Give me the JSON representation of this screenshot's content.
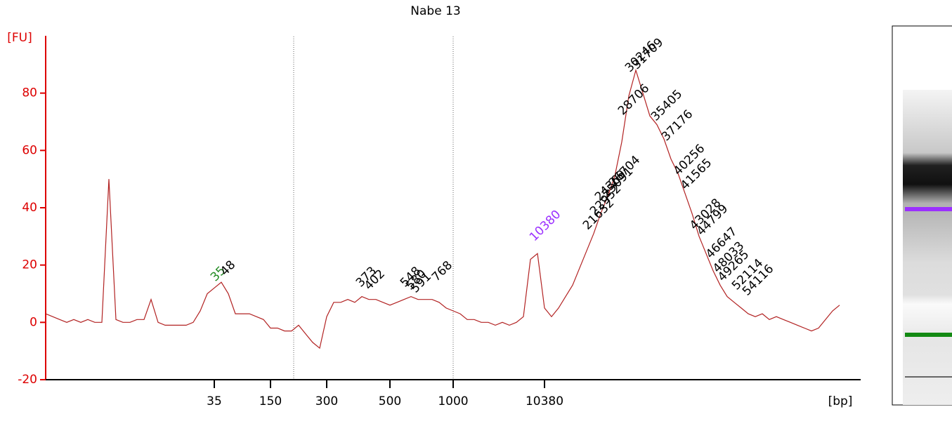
{
  "chart_data": {
    "type": "line",
    "title": "Nabe 13",
    "ylabel": "[FU]",
    "xlabel": "[bp]",
    "color": "#b22222",
    "axis_color": "#dd0000",
    "ylim": [
      -20,
      100
    ],
    "yticks": [
      -20,
      0,
      20,
      40,
      60,
      80
    ],
    "categories": [
      null,
      null,
      null,
      null,
      null,
      null,
      null,
      null,
      null,
      null,
      null,
      null,
      null,
      null,
      null,
      null,
      null,
      null,
      null,
      null,
      null,
      null,
      null,
      null,
      "35",
      null,
      null,
      null,
      null,
      null,
      null,
      null,
      "150",
      null,
      null,
      null,
      null,
      null,
      null,
      null,
      "300",
      null,
      null,
      null,
      null,
      null,
      null,
      null,
      null,
      "500",
      null,
      null,
      null,
      null,
      null,
      null,
      null,
      null,
      "1000",
      null,
      null,
      null,
      null,
      null,
      null,
      null,
      null,
      null,
      null,
      null,
      null,
      "10380",
      null,
      null,
      null,
      null,
      null,
      null,
      null,
      null,
      null,
      null,
      null,
      null,
      null,
      null,
      null,
      null,
      null,
      null,
      null,
      null,
      null,
      null,
      null,
      null,
      null,
      null,
      null,
      null,
      null,
      null,
      null,
      null,
      null,
      null,
      null,
      null,
      null,
      null,
      null,
      null,
      null,
      null
    ],
    "values": [
      3,
      2,
      1,
      0,
      1,
      0,
      1,
      0,
      0,
      50,
      1,
      0,
      0,
      1,
      1,
      8,
      0,
      -1,
      -1,
      -1,
      -1,
      0,
      4,
      10,
      12,
      14,
      10,
      3,
      3,
      3,
      2,
      1,
      -2,
      -2,
      -3,
      -3,
      -1,
      -4,
      -7,
      -9,
      2,
      7,
      7,
      8,
      7,
      9,
      8,
      8,
      7,
      6,
      7,
      8,
      9,
      8,
      8,
      8,
      7,
      5,
      4,
      3,
      1,
      1,
      0,
      0,
      -1,
      0,
      -1,
      0,
      2,
      22,
      24,
      5,
      2,
      5,
      9,
      13,
      19,
      25,
      31,
      38,
      44,
      51,
      63,
      79,
      88,
      80,
      72,
      69,
      64,
      57,
      52,
      45,
      38,
      30,
      24,
      18,
      13,
      9,
      7,
      5,
      3,
      2,
      3,
      1,
      2,
      1,
      0,
      -1,
      -2,
      -3,
      -2,
      1,
      4,
      6
    ],
    "annotations": [
      {
        "text": "35",
        "x": 23.8,
        "y": 15,
        "color": "#228b22"
      },
      {
        "text": "48",
        "x": 25.2,
        "y": 17
      },
      {
        "text": "373",
        "x": 44.5,
        "y": 13
      },
      {
        "text": "402",
        "x": 45.7,
        "y": 12
      },
      {
        "text": "548",
        "x": 50.8,
        "y": 13
      },
      {
        "text": "580",
        "x": 51.6,
        "y": 12
      },
      {
        "text": "591",
        "x": 52.3,
        "y": 11
      },
      {
        "text": "768",
        "x": 55.3,
        "y": 15
      },
      {
        "text": "10380",
        "x": 69.2,
        "y": 29,
        "color": "#9b30ff"
      },
      {
        "text": "21632",
        "x": 76.8,
        "y": 33
      },
      {
        "text": "22952",
        "x": 77.8,
        "y": 38
      },
      {
        "text": "24369",
        "x": 78.5,
        "y": 43
      },
      {
        "text": "25091",
        "x": 79.5,
        "y": 44
      },
      {
        "text": "26704",
        "x": 80.5,
        "y": 48
      },
      {
        "text": "28706",
        "x": 81.8,
        "y": 73
      },
      {
        "text": "30246",
        "x": 82.8,
        "y": 88
      },
      {
        "text": "31709",
        "x": 83.8,
        "y": 89
      },
      {
        "text": "35405",
        "x": 86.5,
        "y": 71
      },
      {
        "text": "37176",
        "x": 88.0,
        "y": 64
      },
      {
        "text": "40256",
        "x": 89.7,
        "y": 52
      },
      {
        "text": "41565",
        "x": 90.7,
        "y": 47
      },
      {
        "text": "43028",
        "x": 92.0,
        "y": 33
      },
      {
        "text": "44799",
        "x": 93.0,
        "y": 31
      },
      {
        "text": "46647",
        "x": 94.3,
        "y": 23
      },
      {
        "text": "48033",
        "x": 95.3,
        "y": 18
      },
      {
        "text": "49265",
        "x": 96.0,
        "y": 15
      },
      {
        "text": "52114",
        "x": 98.0,
        "y": 12
      },
      {
        "text": "54116",
        "x": 99.5,
        "y": 10
      }
    ]
  }
}
